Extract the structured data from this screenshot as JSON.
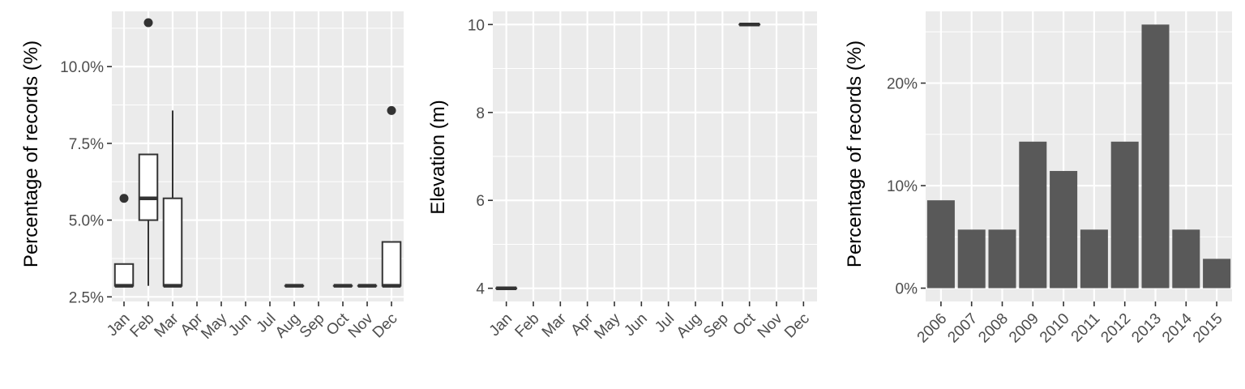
{
  "colors": {
    "panel": "#ebebeb",
    "grid": "#ffffff",
    "ink": "#333333",
    "tick": "#4d4d4d",
    "bar": "#595959"
  },
  "chart_data": [
    {
      "type": "box",
      "xlabel": "",
      "ylabel": "Percentage of records (%)",
      "categories": [
        "Jan",
        "Feb",
        "Mar",
        "Apr",
        "May",
        "Jun",
        "Jul",
        "Aug",
        "Sep",
        "Oct",
        "Nov",
        "Dec"
      ],
      "ylim": [
        2.35,
        11.8
      ],
      "yticks": [
        2.5,
        5.0,
        7.5,
        10.0
      ],
      "ytick_labels": [
        "2.5%",
        "5.0%",
        "7.5%",
        "10.0%"
      ],
      "boxes": [
        {
          "category": "Jan",
          "q1": 2.86,
          "median": 2.86,
          "q3": 3.57,
          "whisker_low": 2.86,
          "whisker_high": 3.57,
          "outliers": [
            5.71
          ]
        },
        {
          "category": "Feb",
          "q1": 5.0,
          "median": 5.71,
          "q3": 7.14,
          "whisker_low": 2.86,
          "whisker_high": 7.14,
          "outliers": [
            11.43
          ]
        },
        {
          "category": "Mar",
          "q1": 2.86,
          "median": 2.86,
          "q3": 5.71,
          "whisker_low": 2.86,
          "whisker_high": 8.57,
          "outliers": []
        },
        {
          "category": "Aug",
          "q1": 2.86,
          "median": 2.86,
          "q3": 2.86,
          "whisker_low": 2.86,
          "whisker_high": 2.86,
          "outliers": []
        },
        {
          "category": "Oct",
          "q1": 2.86,
          "median": 2.86,
          "q3": 2.86,
          "whisker_low": 2.86,
          "whisker_high": 2.86,
          "outliers": []
        },
        {
          "category": "Nov",
          "q1": 2.86,
          "median": 2.86,
          "q3": 2.86,
          "whisker_low": 2.86,
          "whisker_high": 2.86,
          "outliers": []
        },
        {
          "category": "Dec",
          "q1": 2.86,
          "median": 2.86,
          "q3": 4.29,
          "whisker_low": 2.86,
          "whisker_high": 4.29,
          "outliers": [
            8.57
          ]
        }
      ],
      "grid": true
    },
    {
      "type": "box",
      "xlabel": "",
      "ylabel": "Elevation (m)",
      "categories": [
        "Jan",
        "Feb",
        "Mar",
        "Apr",
        "May",
        "Jun",
        "Jul",
        "Aug",
        "Sep",
        "Oct",
        "Nov",
        "Dec"
      ],
      "ylim": [
        3.7,
        10.3
      ],
      "yticks": [
        4,
        6,
        8,
        10
      ],
      "ytick_labels": [
        "4",
        "6",
        "8",
        "10"
      ],
      "boxes": [
        {
          "category": "Jan",
          "q1": 4,
          "median": 4,
          "q3": 4,
          "whisker_low": 4,
          "whisker_high": 4,
          "outliers": []
        },
        {
          "category": "Oct",
          "q1": 10,
          "median": 10,
          "q3": 10,
          "whisker_low": 10,
          "whisker_high": 10,
          "outliers": []
        }
      ],
      "grid": true
    },
    {
      "type": "bar",
      "xlabel": "",
      "ylabel": "Percentage of records (%)",
      "categories": [
        "2006",
        "2007",
        "2008",
        "2009",
        "2010",
        "2011",
        "2012",
        "2013",
        "2014",
        "2015"
      ],
      "values": [
        8.57,
        5.71,
        5.71,
        14.29,
        11.43,
        5.71,
        14.29,
        25.71,
        5.71,
        2.86
      ],
      "ylim": [
        -1.3,
        27.0
      ],
      "yticks": [
        0,
        10,
        20
      ],
      "ytick_labels": [
        "0%",
        "10%",
        "20%"
      ],
      "grid": true
    }
  ]
}
